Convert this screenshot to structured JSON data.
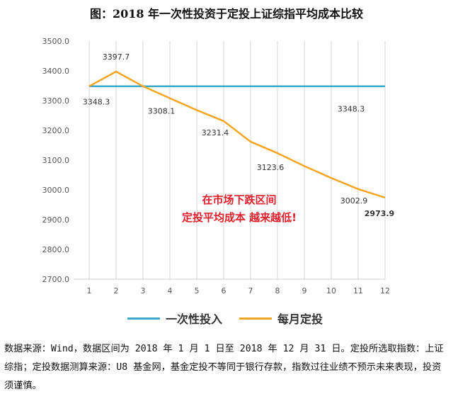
{
  "title": "图：2018 年一次性投资于定投上证综指平均成本比较",
  "chart_data": {
    "type": "line",
    "x": [
      1,
      2,
      3,
      4,
      5,
      6,
      7,
      8,
      9,
      10,
      11,
      12
    ],
    "ylim": [
      2700,
      3500
    ],
    "yticks": [
      "2700.0",
      "2800.0",
      "2900.0",
      "3000.0",
      "3100.0",
      "3200.0",
      "3300.0",
      "3400.0",
      "3500.0"
    ],
    "grid": "vertical",
    "legend_position": "bottom",
    "series": [
      {
        "name": "一次性投入",
        "color": "#3fa9c9",
        "values": [
          3348.3,
          3348.3,
          3348.3,
          3348.3,
          3348.3,
          3348.3,
          3348.3,
          3348.3,
          3348.3,
          3348.3,
          3348.3,
          3348.3
        ]
      },
      {
        "name": "每月定投",
        "color": "#f2a623",
        "values": [
          3348.3,
          3397.7,
          3348.3,
          3308.1,
          3268.0,
          3231.4,
          3162.0,
          3123.6,
          3080.0,
          3040.0,
          3002.9,
          2973.9
        ]
      }
    ],
    "data_labels": [
      {
        "x": 1,
        "text": "3348.3",
        "color": "#333333"
      },
      {
        "x": 2,
        "text": "3397.7",
        "color": "#333333"
      },
      {
        "x": 4,
        "text": "3308.1",
        "color": "#333333"
      },
      {
        "x": 6,
        "text": "3231.4",
        "color": "#333333"
      },
      {
        "x": 8,
        "text": "3123.6",
        "color": "#333333"
      },
      {
        "x": 11,
        "text": "3002.9",
        "color": "#333333"
      },
      {
        "x": 11.2,
        "text": "3348.3",
        "color": "#333333"
      },
      {
        "x": 12,
        "text": "2973.9",
        "color": "#d81e3a"
      }
    ],
    "annotation": {
      "lines": [
        "在市场下跌区间",
        "定投平均成本 越来越低!"
      ],
      "color": "#e0202c"
    }
  },
  "note": "数据来源：Wind，数据区间为 2018 年 1 月 1 日至 2018 年 12 月 31 日。定投所选取指数：上证综指；定投数据测算来源：U8 基金网，基金定投不等同于银行存款，指数过往业绩不预示未来表现，投资须谨慎。"
}
